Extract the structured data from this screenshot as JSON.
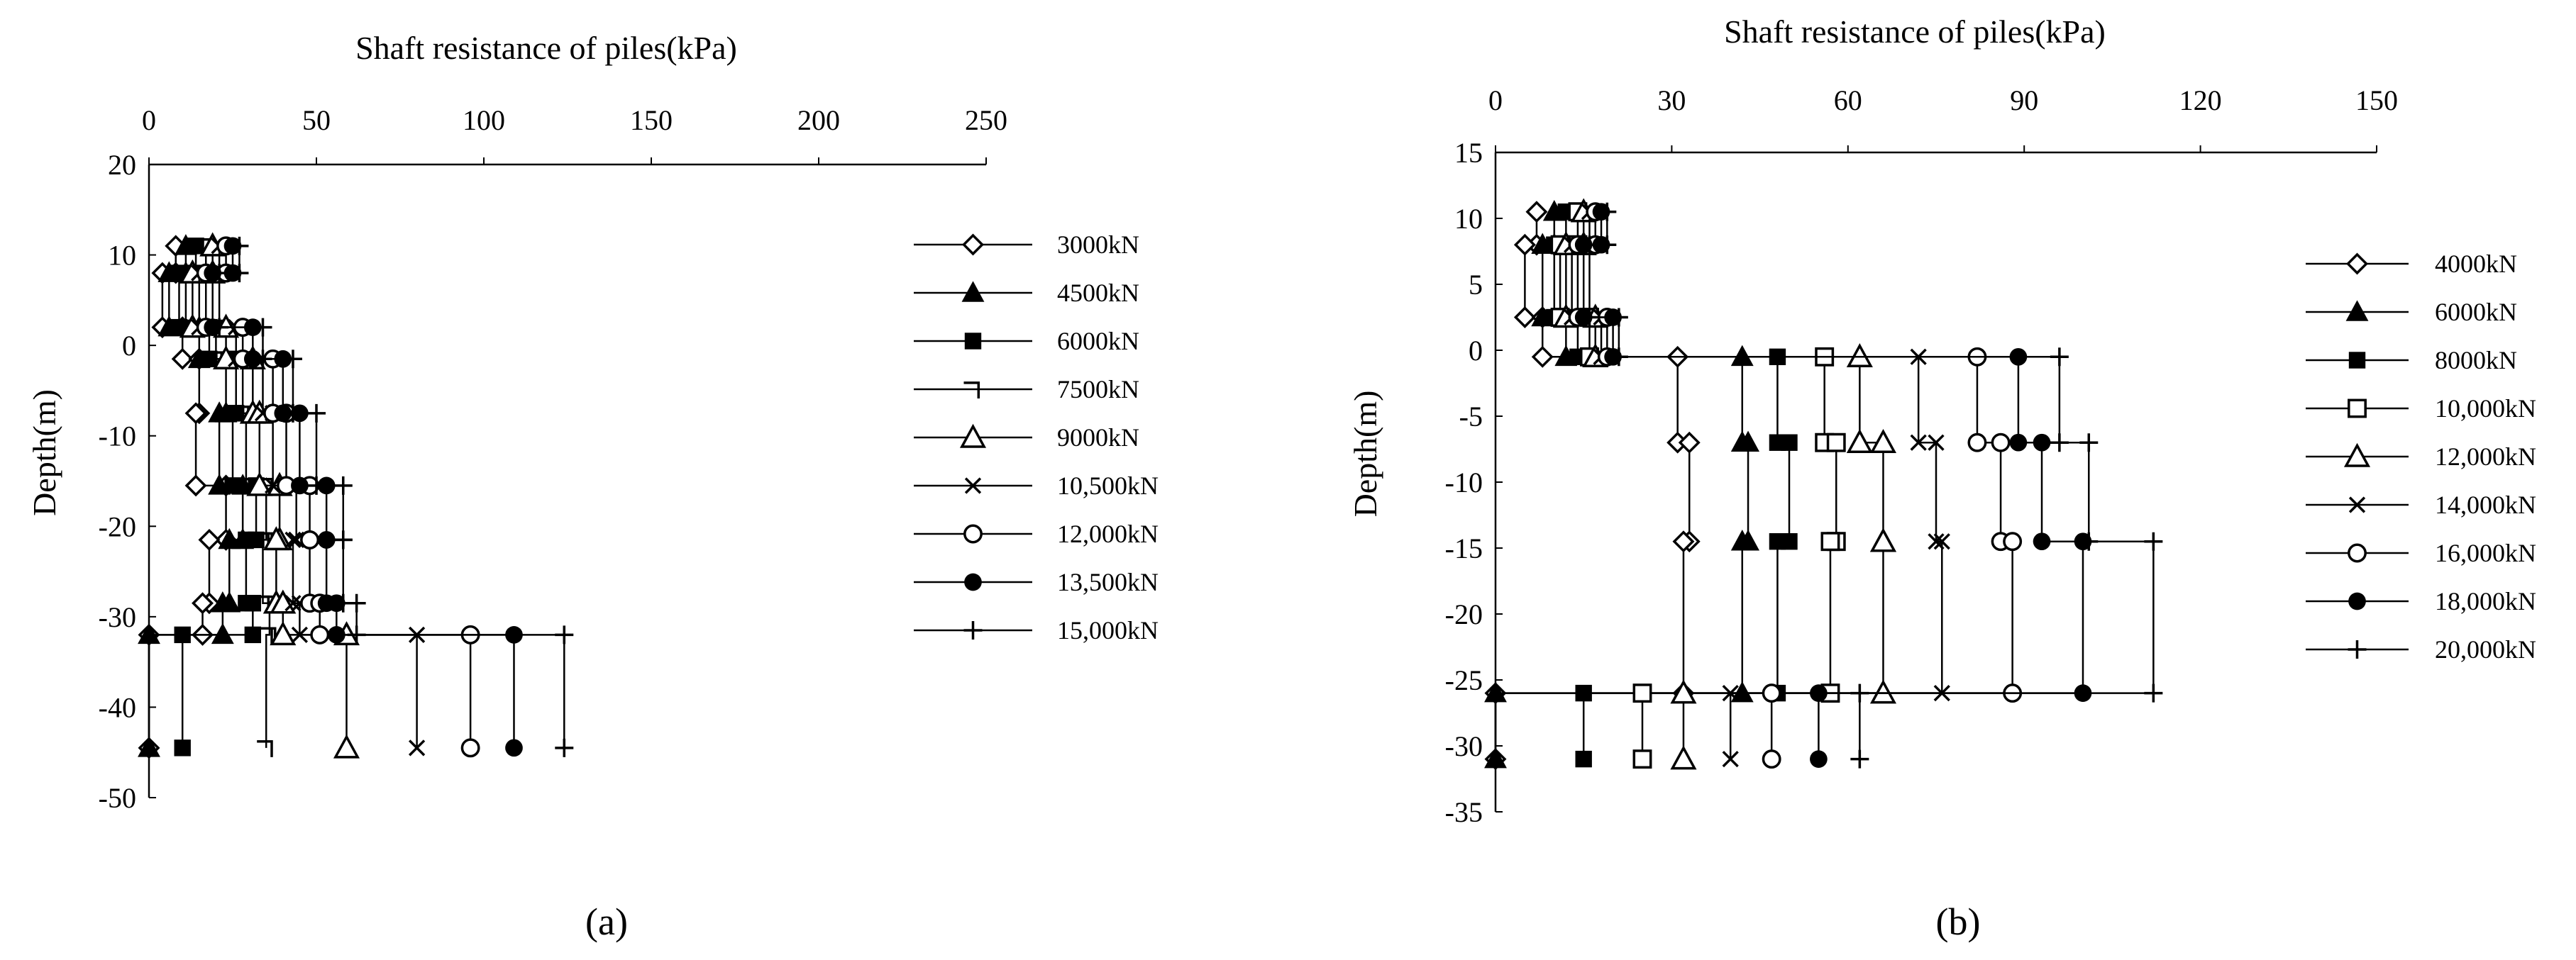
{
  "chart_data": [
    {
      "type": "line",
      "panel_label": "(a)",
      "title": "",
      "xlabel": "Shaft resistance of piles(kPa)",
      "ylabel": "Depth(m)",
      "x_axis_position": "top",
      "xlim": [
        0,
        250
      ],
      "ylim": [
        -50,
        20
      ],
      "xticks": [
        0,
        50,
        100,
        150,
        200,
        250
      ],
      "yticks": [
        20,
        10,
        0,
        -10,
        -20,
        -30,
        -40,
        -50
      ],
      "legend_position": "right",
      "series": [
        {
          "name": "3000kN",
          "marker": "diamond-open",
          "x": [
            8,
            8,
            4,
            4,
            10,
            10,
            15,
            15,
            14,
            14,
            23,
            23,
            18,
            18,
            16,
            16,
            0,
            0
          ],
          "y": [
            11,
            8,
            8,
            2,
            2,
            -1.5,
            -1.5,
            -7.5,
            -7.5,
            -15.5,
            -15.5,
            -21.5,
            -21.5,
            -28.5,
            -28.5,
            -32,
            -32,
            -44.5
          ]
        },
        {
          "name": "4500kN",
          "marker": "triangle-filled",
          "x": [
            11,
            11,
            6,
            6,
            15,
            15,
            23,
            23,
            21,
            21,
            28,
            28,
            24,
            24,
            22,
            22,
            0,
            0
          ],
          "y": [
            11,
            8,
            8,
            2,
            2,
            -1.5,
            -1.5,
            -7.5,
            -7.5,
            -15.5,
            -15.5,
            -21.5,
            -21.5,
            -28.5,
            -28.5,
            -32,
            -32,
            -44.5
          ]
        },
        {
          "name": "6000kN",
          "marker": "square-filled",
          "x": [
            14,
            14,
            9,
            9,
            18,
            18,
            26,
            26,
            25,
            25,
            32,
            32,
            29,
            29,
            31,
            31,
            10,
            10
          ],
          "y": [
            11,
            8,
            8,
            2,
            2,
            -1.5,
            -1.5,
            -7.5,
            -7.5,
            -15.5,
            -15.5,
            -21.5,
            -21.5,
            -28.5,
            -28.5,
            -32,
            -32,
            -44.5
          ]
        },
        {
          "name": "7500kN",
          "marker": "corner",
          "x": [
            17,
            17,
            11,
            11,
            20,
            20,
            28,
            28,
            29,
            29,
            35,
            35,
            34,
            34,
            36,
            36,
            35,
            35
          ],
          "y": [
            11,
            8,
            8,
            2,
            2,
            -1.5,
            -1.5,
            -7.5,
            -7.5,
            -15.5,
            -15.5,
            -21.5,
            -21.5,
            -28.5,
            -28.5,
            -32,
            -32,
            -44.5
          ]
        },
        {
          "name": "9000kN",
          "marker": "triangle-open",
          "x": [
            19,
            19,
            13,
            13,
            23,
            23,
            31,
            31,
            33,
            33,
            39,
            39,
            38,
            38,
            40,
            40,
            59,
            59
          ],
          "y": [
            11,
            8,
            8,
            2,
            2,
            -1.5,
            -1.5,
            -7.5,
            -7.5,
            -15.5,
            -15.5,
            -21.5,
            -21.5,
            -28.5,
            -28.5,
            -32,
            -32,
            -44.5
          ]
        },
        {
          "name": "10,500kN",
          "marker": "x",
          "x": [
            21,
            21,
            15,
            15,
            26,
            26,
            34,
            34,
            37,
            37,
            44,
            44,
            43,
            43,
            45,
            45,
            80,
            80
          ],
          "y": [
            11,
            8,
            8,
            2,
            2,
            -1.5,
            -1.5,
            -7.5,
            -7.5,
            -15.5,
            -15.5,
            -21.5,
            -21.5,
            -28.5,
            -28.5,
            -32,
            -32,
            -44.5
          ]
        },
        {
          "name": "12,000kN",
          "marker": "circle-open",
          "x": [
            23,
            23,
            17,
            17,
            28,
            28,
            37,
            37,
            41,
            41,
            48,
            48,
            48,
            48,
            51,
            51,
            96,
            96
          ],
          "y": [
            11,
            8,
            8,
            2,
            2,
            -1.5,
            -1.5,
            -7.5,
            -7.5,
            -15.5,
            -15.5,
            -21.5,
            -21.5,
            -28.5,
            -28.5,
            -32,
            -32,
            -44.5
          ]
        },
        {
          "name": "13,500kN",
          "marker": "circle-filled",
          "x": [
            25,
            25,
            19,
            19,
            31,
            31,
            40,
            40,
            45,
            45,
            53,
            53,
            53,
            53,
            56,
            56,
            109,
            109
          ],
          "y": [
            11,
            8,
            8,
            2,
            2,
            -1.5,
            -1.5,
            -7.5,
            -7.5,
            -15.5,
            -15.5,
            -21.5,
            -21.5,
            -28.5,
            -28.5,
            -32,
            -32,
            -44.5
          ]
        },
        {
          "name": "15,000kN",
          "marker": "plus",
          "x": [
            27,
            27,
            21,
            21,
            34,
            34,
            43,
            43,
            50,
            50,
            58,
            58,
            58,
            58,
            62,
            62,
            124,
            124
          ],
          "y": [
            11,
            8,
            8,
            2,
            2,
            -1.5,
            -1.5,
            -7.5,
            -7.5,
            -15.5,
            -15.5,
            -21.5,
            -21.5,
            -28.5,
            -28.5,
            -32,
            -32,
            -44.5
          ]
        }
      ]
    },
    {
      "type": "line",
      "panel_label": "(b)",
      "title": "",
      "xlabel": "Shaft resistance of piles(kPa)",
      "ylabel": "Depth(m)",
      "x_axis_position": "top",
      "xlim": [
        0,
        150
      ],
      "ylim": [
        -35,
        15
      ],
      "xticks": [
        0,
        30,
        60,
        90,
        120,
        150
      ],
      "yticks": [
        15,
        10,
        5,
        0,
        -5,
        -10,
        -15,
        -20,
        -25,
        -30,
        -35
      ],
      "legend_position": "right",
      "series": [
        {
          "name": "4000kN",
          "marker": "diamond-open",
          "x": [
            7,
            7,
            5,
            5,
            8,
            8,
            31,
            31,
            33,
            33,
            32,
            32,
            0,
            0
          ],
          "y": [
            10.5,
            8,
            8,
            2.5,
            2.5,
            -0.5,
            -0.5,
            -7,
            -7,
            -14.5,
            -14.5,
            -26,
            -26,
            -31
          ]
        },
        {
          "name": "6000kN",
          "marker": "triangle-filled",
          "x": [
            10,
            10,
            8,
            8,
            12,
            12,
            42,
            42,
            43,
            43,
            42,
            42,
            0,
            0
          ],
          "y": [
            10.5,
            8,
            8,
            2.5,
            2.5,
            -0.5,
            -0.5,
            -7,
            -7,
            -14.5,
            -14.5,
            -26,
            -26,
            -31
          ]
        },
        {
          "name": "8000kN",
          "marker": "square-filled",
          "x": [
            12,
            12,
            10,
            10,
            14,
            14,
            48,
            48,
            50,
            50,
            48,
            48,
            15,
            15
          ],
          "y": [
            10.5,
            8,
            8,
            2.5,
            2.5,
            -0.5,
            -0.5,
            -7,
            -7,
            -14.5,
            -14.5,
            -26,
            -26,
            -31
          ]
        },
        {
          "name": "10,000kN",
          "marker": "square-open",
          "x": [
            14,
            14,
            11,
            11,
            16,
            16,
            56,
            56,
            58,
            58,
            57,
            57,
            25,
            25
          ],
          "y": [
            10.5,
            8,
            8,
            2.5,
            2.5,
            -0.5,
            -0.5,
            -7,
            -7,
            -14.5,
            -14.5,
            -26,
            -26,
            -31
          ]
        },
        {
          "name": "12,000kN",
          "marker": "triangle-open",
          "x": [
            15,
            15,
            12,
            12,
            17,
            17,
            62,
            62,
            66,
            66,
            66,
            66,
            32,
            32
          ],
          "y": [
            10.5,
            8,
            8,
            2.5,
            2.5,
            -0.5,
            -0.5,
            -7,
            -7,
            -14.5,
            -14.5,
            -26,
            -26,
            -31
          ]
        },
        {
          "name": "14,000kN",
          "marker": "x",
          "x": [
            16,
            16,
            13,
            13,
            18,
            18,
            72,
            72,
            75,
            75,
            76,
            76,
            40,
            40
          ],
          "y": [
            10.5,
            8,
            8,
            2.5,
            2.5,
            -0.5,
            -0.5,
            -7,
            -7,
            -14.5,
            -14.5,
            -26,
            -26,
            -31
          ]
        },
        {
          "name": "16,000kN",
          "marker": "circle-open",
          "x": [
            17,
            17,
            14,
            14,
            19,
            19,
            82,
            82,
            86,
            86,
            88,
            88,
            47,
            47
          ],
          "y": [
            10.5,
            8,
            8,
            2.5,
            2.5,
            -0.5,
            -0.5,
            -7,
            -7,
            -14.5,
            -14.5,
            -26,
            -26,
            -31
          ]
        },
        {
          "name": "18,000kN",
          "marker": "circle-filled",
          "x": [
            18,
            18,
            15,
            15,
            20,
            20,
            89,
            89,
            93,
            93,
            100,
            100,
            55,
            55
          ],
          "y": [
            10.5,
            8,
            8,
            2.5,
            2.5,
            -0.5,
            -0.5,
            -7,
            -7,
            -14.5,
            -14.5,
            -26,
            -26,
            -31
          ]
        },
        {
          "name": "20,000kN",
          "marker": "plus",
          "x": [
            19,
            19,
            16,
            16,
            21,
            21,
            96,
            96,
            101,
            101,
            112,
            112,
            62,
            62
          ],
          "y": [
            10.5,
            8,
            8,
            2.5,
            2.5,
            -0.5,
            -0.5,
            -7,
            -7,
            -14.5,
            -14.5,
            -26,
            -26,
            -31
          ]
        }
      ]
    }
  ]
}
